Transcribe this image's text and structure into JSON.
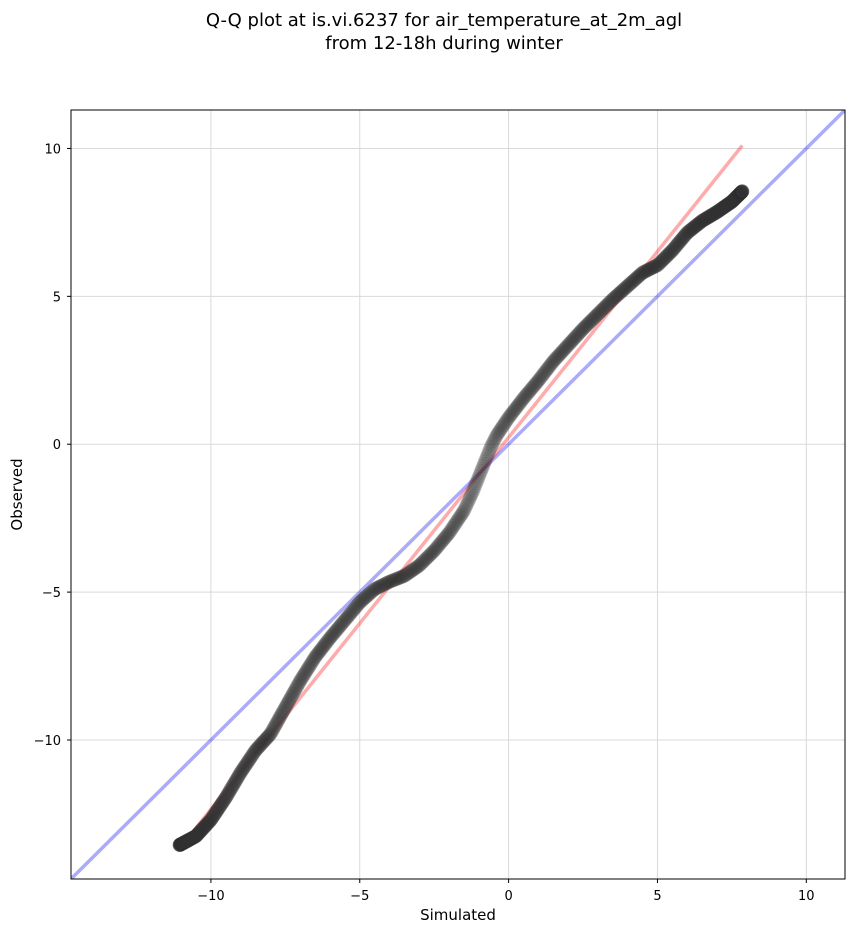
{
  "chart_data": {
    "type": "scatter",
    "title_line1": "Q-Q plot at is.vi.6237 for air_temperature_at_2m_agl",
    "title_line2": "from 12-18h during winter",
    "xlabel": "Simulated",
    "ylabel": "Observed",
    "xlim": [
      -14.7,
      11.3
    ],
    "ylim": [
      -14.7,
      11.3
    ],
    "xticks": [
      -10,
      -5,
      0,
      5,
      10
    ],
    "xtick_labels": [
      "−10",
      "−5",
      "0",
      "5",
      "10"
    ],
    "yticks": [
      -10,
      -5,
      0,
      5,
      10
    ],
    "ytick_labels": [
      "−10",
      "−5",
      "0",
      "5",
      "10"
    ],
    "grid": true,
    "colors": {
      "points": "#333333",
      "fit_line": "#ff0000",
      "identity_line": "#0000ee",
      "grid": "#d9d9d9"
    },
    "fit_line": {
      "x": [
        -11.0,
        7.85
      ],
      "y": [
        -13.6,
        10.1
      ]
    },
    "identity_line": {
      "x": [
        -14.7,
        11.3
      ],
      "y": [
        -14.7,
        11.3
      ]
    },
    "qq_curve": {
      "x": [
        -11.05,
        -10.5,
        -10.0,
        -9.5,
        -9.0,
        -8.5,
        -8.0,
        -7.5,
        -7.0,
        -6.5,
        -6.0,
        -5.5,
        -5.0,
        -4.5,
        -4.0,
        -3.5,
        -3.0,
        -2.5,
        -2.0,
        -1.5,
        -1.2,
        -1.0,
        -0.8,
        -0.6,
        -0.4,
        -0.2,
        0.0,
        0.5,
        1.0,
        1.5,
        2.0,
        2.5,
        3.0,
        3.5,
        4.0,
        4.5,
        5.0,
        5.5,
        6.0,
        6.5,
        7.0,
        7.5,
        7.85
      ],
      "y": [
        -13.55,
        -13.25,
        -12.7,
        -11.95,
        -11.1,
        -10.35,
        -9.8,
        -8.9,
        -8.0,
        -7.2,
        -6.55,
        -5.95,
        -5.35,
        -4.9,
        -4.65,
        -4.45,
        -4.1,
        -3.6,
        -3.0,
        -2.25,
        -1.6,
        -1.1,
        -0.6,
        -0.1,
        0.3,
        0.6,
        0.9,
        1.55,
        2.15,
        2.8,
        3.35,
        3.9,
        4.4,
        4.9,
        5.35,
        5.8,
        6.05,
        6.55,
        7.15,
        7.55,
        7.85,
        8.2,
        8.55
      ]
    }
  }
}
